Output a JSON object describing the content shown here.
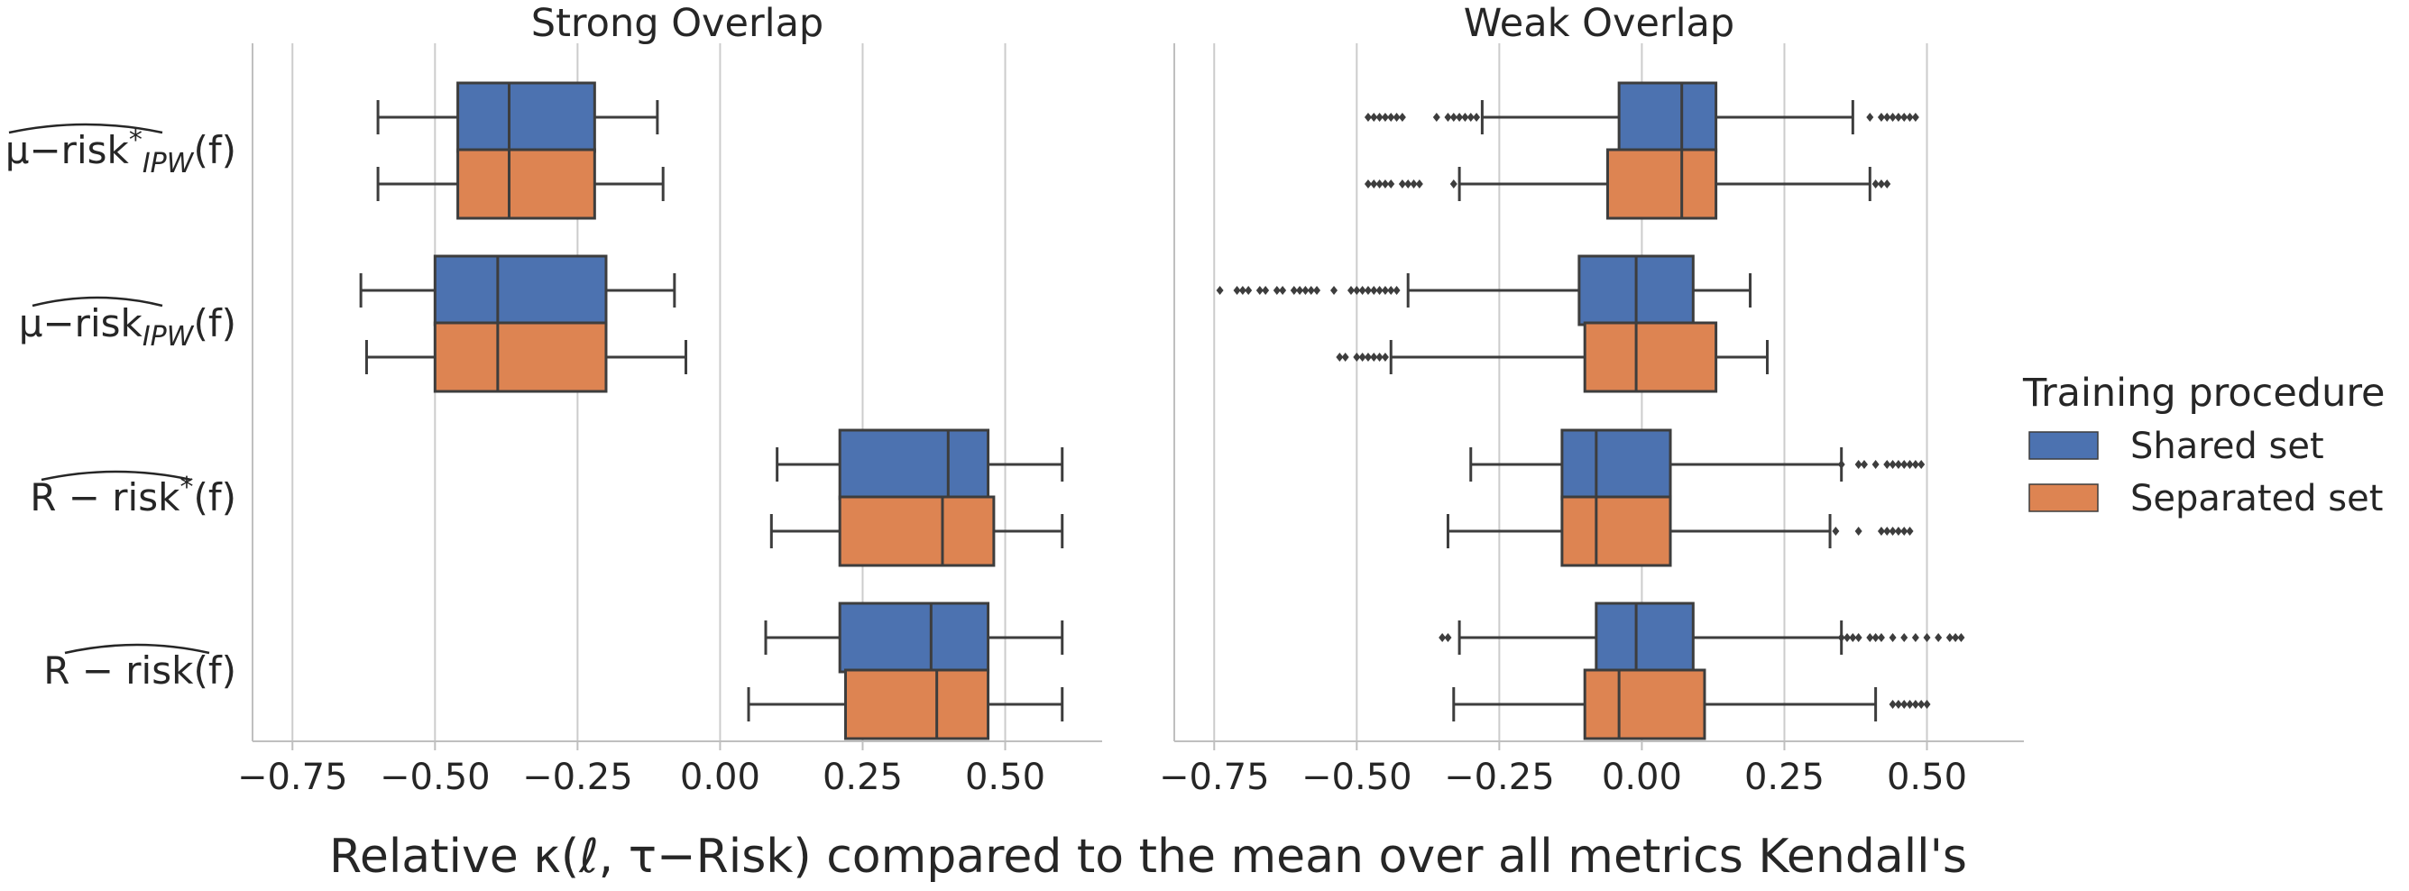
{
  "chart_data": {
    "type": "boxplot",
    "xlabel": "Relative κ(ℓ, τ−Risk) compared to the mean over all metrics Kendall's",
    "xlim": [
      -0.82,
      0.67
    ],
    "xticks": [
      -0.75,
      -0.5,
      -0.25,
      0.0,
      0.25,
      0.5
    ],
    "xtick_labels": [
      "−0.75",
      "−0.50",
      "−0.25",
      "0.00",
      "0.25",
      "0.50"
    ],
    "grid": "vertical",
    "categories": [
      {
        "id": "mu_risk_star_ipw",
        "base": "μ−risk",
        "star": "*",
        "sub": "IPW",
        "tail": "(f)"
      },
      {
        "id": "mu_risk_ipw",
        "base": "μ−risk",
        "star": "",
        "sub": "IPW",
        "tail": "(f)"
      },
      {
        "id": "r_risk_star",
        "base": "R − risk",
        "star": "*",
        "sub": "",
        "tail": "(f)"
      },
      {
        "id": "r_risk",
        "base": "R − risk",
        "star": "",
        "sub": "",
        "tail": "(f)"
      }
    ],
    "legend": {
      "title": "Training procedure",
      "position": "right",
      "entries": [
        {
          "name": "Shared set",
          "color": "#4c72b0"
        },
        {
          "name": "Separated set",
          "color": "#dd8452"
        }
      ]
    },
    "panels": [
      {
        "title": "Strong Overlap",
        "boxes": [
          [
            {
              "whislo": -0.6,
              "q1": -0.46,
              "med": -0.37,
              "q3": -0.22,
              "whishi": -0.11,
              "fliers": []
            },
            {
              "whislo": -0.6,
              "q1": -0.46,
              "med": -0.37,
              "q3": -0.22,
              "whishi": -0.1,
              "fliers": []
            }
          ],
          [
            {
              "whislo": -0.63,
              "q1": -0.5,
              "med": -0.39,
              "q3": -0.2,
              "whishi": -0.08,
              "fliers": []
            },
            {
              "whislo": -0.62,
              "q1": -0.5,
              "med": -0.39,
              "q3": -0.2,
              "whishi": -0.06,
              "fliers": []
            }
          ],
          [
            {
              "whislo": 0.1,
              "q1": 0.21,
              "med": 0.4,
              "q3": 0.47,
              "whishi": 0.6,
              "fliers": []
            },
            {
              "whislo": 0.09,
              "q1": 0.21,
              "med": 0.39,
              "q3": 0.48,
              "whishi": 0.6,
              "fliers": []
            }
          ],
          [
            {
              "whislo": 0.08,
              "q1": 0.21,
              "med": 0.37,
              "q3": 0.47,
              "whishi": 0.6,
              "fliers": []
            },
            {
              "whislo": 0.05,
              "q1": 0.22,
              "med": 0.38,
              "q3": 0.47,
              "whishi": 0.6,
              "fliers": []
            }
          ]
        ]
      },
      {
        "title": "Weak Overlap",
        "boxes": [
          [
            {
              "whislo": -0.28,
              "q1": -0.04,
              "med": 0.07,
              "q3": 0.13,
              "whishi": 0.37,
              "fliers": [
                -0.48,
                -0.47,
                -0.46,
                -0.45,
                -0.44,
                -0.43,
                -0.42,
                -0.36,
                -0.34,
                -0.33,
                -0.32,
                -0.31,
                -0.3,
                -0.29,
                0.4,
                0.42,
                0.43,
                0.44,
                0.45,
                0.46,
                0.47,
                0.48
              ]
            },
            {
              "whislo": -0.32,
              "q1": -0.06,
              "med": 0.07,
              "q3": 0.13,
              "whishi": 0.4,
              "fliers": [
                -0.48,
                -0.47,
                -0.46,
                -0.45,
                -0.44,
                -0.42,
                -0.41,
                -0.4,
                -0.39,
                -0.33,
                0.41,
                0.42,
                0.43
              ]
            }
          ],
          [
            {
              "whislo": -0.41,
              "q1": -0.11,
              "med": -0.01,
              "q3": 0.09,
              "whishi": 0.19,
              "fliers": [
                -0.74,
                -0.71,
                -0.7,
                -0.69,
                -0.67,
                -0.66,
                -0.64,
                -0.63,
                -0.61,
                -0.6,
                -0.59,
                -0.58,
                -0.57,
                -0.54,
                -0.51,
                -0.5,
                -0.49,
                -0.48,
                -0.47,
                -0.46,
                -0.45,
                -0.44,
                -0.43
              ]
            },
            {
              "whislo": -0.44,
              "q1": -0.1,
              "med": -0.01,
              "q3": 0.13,
              "whishi": 0.22,
              "fliers": [
                -0.53,
                -0.52,
                -0.5,
                -0.49,
                -0.48,
                -0.47,
                -0.46,
                -0.45
              ]
            }
          ],
          [
            {
              "whislo": -0.3,
              "q1": -0.14,
              "med": -0.08,
              "q3": 0.05,
              "whishi": 0.35,
              "fliers": [
                0.35,
                0.38,
                0.39,
                0.41,
                0.43,
                0.44,
                0.45,
                0.46,
                0.47,
                0.48,
                0.49
              ]
            },
            {
              "whislo": -0.34,
              "q1": -0.14,
              "med": -0.08,
              "q3": 0.05,
              "whishi": 0.33,
              "fliers": [
                0.34,
                0.38,
                0.42,
                0.43,
                0.44,
                0.45,
                0.46,
                0.47
              ]
            }
          ],
          [
            {
              "whislo": -0.32,
              "q1": -0.08,
              "med": -0.01,
              "q3": 0.09,
              "whishi": 0.35,
              "fliers": [
                -0.35,
                -0.34,
                0.35,
                0.36,
                0.37,
                0.38,
                0.4,
                0.41,
                0.42,
                0.44,
                0.46,
                0.48,
                0.5,
                0.52,
                0.54,
                0.55,
                0.56
              ]
            },
            {
              "whislo": -0.33,
              "q1": -0.1,
              "med": -0.04,
              "q3": 0.11,
              "whishi": 0.41,
              "fliers": [
                0.44,
                0.45,
                0.46,
                0.47,
                0.48,
                0.49,
                0.5
              ]
            }
          ]
        ]
      }
    ]
  }
}
